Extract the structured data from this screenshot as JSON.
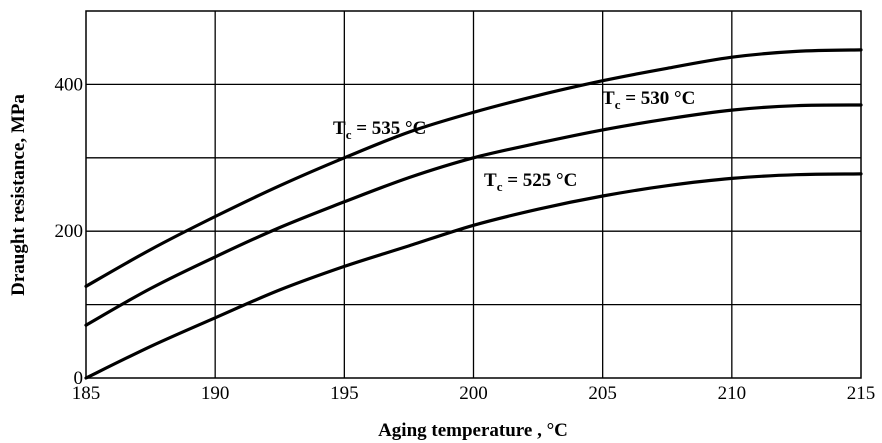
{
  "chart_data": {
    "type": "line",
    "title": "",
    "xlabel": "Aging temperature , °C",
    "ylabel": "Draught resistance, MPa",
    "xlim": [
      185,
      215
    ],
    "ylim": [
      0,
      500
    ],
    "x_ticks": [
      "185",
      "190",
      "195",
      "200",
      "205",
      "210",
      "215"
    ],
    "y_ticks": [
      "0",
      "200",
      "400"
    ],
    "x_tick_values": [
      185,
      190,
      195,
      200,
      205,
      210,
      215
    ],
    "y_tick_values": [
      0,
      200,
      400
    ],
    "grid": true,
    "series": [
      {
        "name": "Tc = 535 °C",
        "label_sub": "c",
        "label_parts": [
          "T",
          "c",
          " = 535 °C"
        ],
        "x": [
          185,
          187.5,
          190,
          192.5,
          195,
          197.5,
          200,
          202.5,
          205,
          207.5,
          210,
          212.5,
          215
        ],
        "y": [
          125,
          175,
          220,
          262,
          300,
          335,
          362,
          385,
          405,
          422,
          437,
          445,
          447
        ]
      },
      {
        "name": "Tc = 530 °C",
        "label_sub": "c",
        "label_parts": [
          "T",
          "c",
          " = 530 °C"
        ],
        "x": [
          185,
          187.5,
          190,
          192.5,
          195,
          197.5,
          200,
          202.5,
          205,
          207.5,
          210,
          212.5,
          215
        ],
        "y": [
          72,
          122,
          165,
          205,
          240,
          273,
          300,
          320,
          338,
          353,
          365,
          371,
          372
        ]
      },
      {
        "name": "Tc = 525 °C",
        "label_sub": "c",
        "label_parts": [
          "T",
          "c",
          " = 525 °C"
        ],
        "x": [
          185,
          187.5,
          190,
          192.5,
          195,
          197.5,
          200,
          202.5,
          205,
          207.5,
          210,
          212.5,
          215
        ],
        "y": [
          0,
          43,
          82,
          120,
          152,
          180,
          208,
          230,
          248,
          262,
          272,
          277,
          278
        ]
      }
    ]
  }
}
